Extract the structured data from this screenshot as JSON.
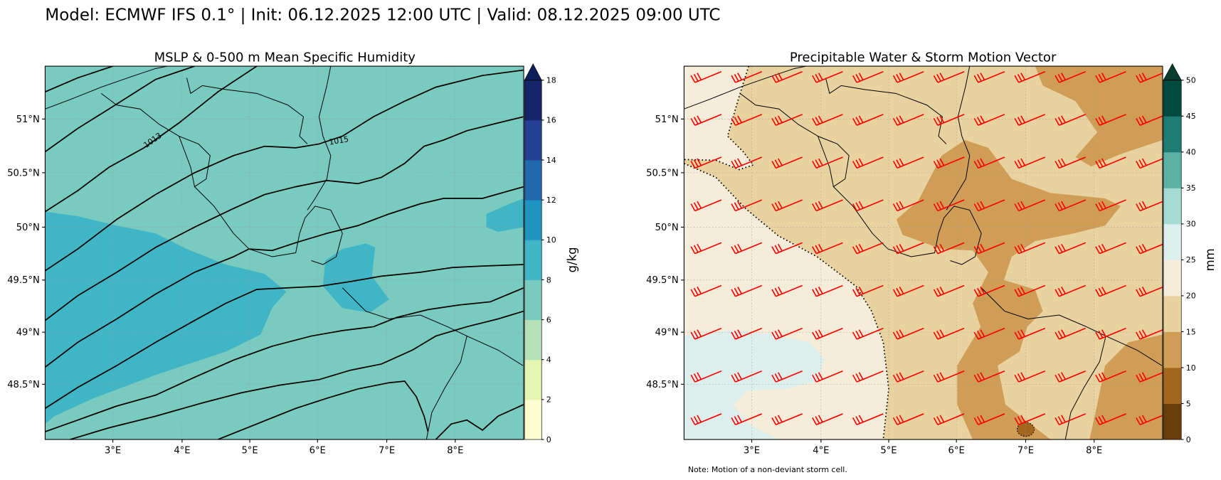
{
  "suptitle": "Model: ECMWF IFS 0.1° | Init: 06.12.2025 12:00 UTC | Valid: 08.12.2025 09:00 UTC",
  "left_panel": {
    "title": "MSLP & 0-500 m Mean Specific Humidity",
    "isobar_labels": [
      "1013",
      "1015"
    ],
    "colorbar": {
      "label": "g/kg",
      "ticks": [
        "0",
        "2",
        "4",
        "6",
        "8",
        "10",
        "12",
        "14",
        "16",
        "18"
      ],
      "colors": [
        "#fdfed1",
        "#e4f4b3",
        "#b6e0b5",
        "#79cabf",
        "#40b5c6",
        "#2094c0",
        "#2169ad",
        "#253f95",
        "#162469"
      ],
      "extend_color": "#0c1f5a"
    },
    "fill_colors": {
      "base": "#79cabf",
      "moist": "#40b5c6"
    }
  },
  "right_panel": {
    "title": "Precipitable Water & Storm Motion Vector",
    "note": "Note: Motion of a non-deviant storm cell.",
    "colorbar": {
      "label": "mm",
      "ticks": [
        "0",
        "5",
        "10",
        "15",
        "20",
        "25",
        "30",
        "35",
        "40",
        "45",
        "50"
      ],
      "colors": [
        "#6b3c0b",
        "#a3661f",
        "#cf9d56",
        "#e8d29f",
        "#f5ecd9",
        "#dcefed",
        "#a4dad1",
        "#5cb1a5",
        "#1e7d73",
        "#02493e"
      ],
      "extend_color": "#0a3d30"
    },
    "barb_color": "#ff0000"
  },
  "axes": {
    "lat_labels": [
      "51°N",
      "50.5°N",
      "50°N",
      "49.5°N",
      "49°N",
      "48.5°N"
    ],
    "lon_labels": [
      "3°E",
      "4°E",
      "5°E",
      "6°E",
      "7°E",
      "8°E"
    ]
  }
}
